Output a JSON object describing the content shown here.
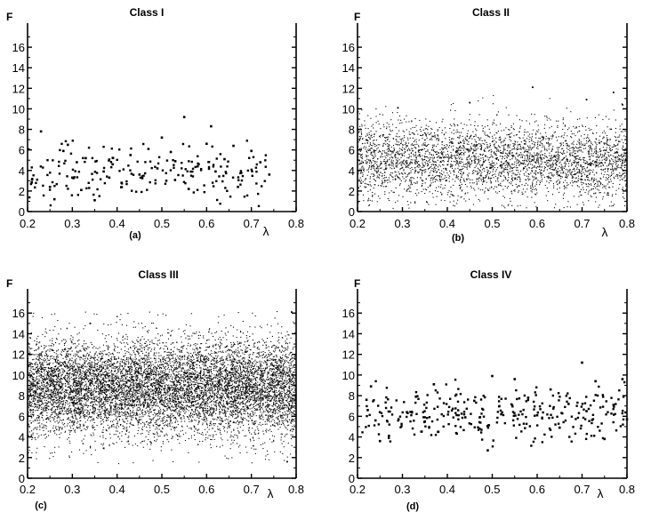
{
  "figure": {
    "panels": [
      {
        "id": "a",
        "title": "Class I",
        "subfig": "(a)",
        "ylabel": "F",
        "xlabel": "λ"
      },
      {
        "id": "b",
        "title": "Class II",
        "subfig": "(b)",
        "ylabel": "F",
        "xlabel": "λ"
      },
      {
        "id": "c",
        "title": "Class III",
        "subfig": "(c)",
        "ylabel": "F",
        "xlabel": "λ"
      },
      {
        "id": "d",
        "title": "Class IV",
        "subfig": "(d)",
        "ylabel": "F",
        "xlabel": "λ"
      }
    ]
  },
  "chart_data": [
    {
      "type": "scatter",
      "title": "Class I",
      "xlabel": "λ",
      "ylabel": "F",
      "xlim": [
        0.2,
        0.8
      ],
      "ylim": [
        0,
        18
      ],
      "xticks": [
        "0.2",
        "0.3",
        "0.4",
        "0.5",
        "0.6",
        "0.7",
        "0.8"
      ],
      "yticks": [
        "0",
        "2",
        "4",
        "6",
        "8",
        "10",
        "12",
        "14",
        "16"
      ],
      "point_count_estimate": 200,
      "point_distribution": {
        "x_range": [
          0.2,
          0.74
        ],
        "y_range": [
          0.5,
          9.2
        ],
        "y_center": 3.8
      },
      "x": [
        0.21,
        0.23,
        0.25,
        0.26,
        0.28,
        0.29,
        0.3,
        0.31,
        0.32,
        0.33,
        0.35,
        0.37,
        0.39,
        0.41,
        0.43,
        0.45,
        0.47,
        0.49,
        0.5,
        0.51,
        0.52,
        0.53,
        0.55,
        0.56,
        0.58,
        0.6,
        0.61,
        0.62,
        0.64,
        0.66,
        0.67,
        0.7,
        0.72,
        0.74
      ],
      "y": [
        3.1,
        7.8,
        2.4,
        1.2,
        5.9,
        6.5,
        3.3,
        4.8,
        2.1,
        5.2,
        1.1,
        3.9,
        4.6,
        2.8,
        5.5,
        3.6,
        6.1,
        4.2,
        7.2,
        3.0,
        5.8,
        4.9,
        9.2,
        2.2,
        4.4,
        6.6,
        8.3,
        3.9,
        5.1,
        6.4,
        2.4,
        5.9,
        4.8,
        3.6
      ]
    },
    {
      "type": "scatter",
      "title": "Class II",
      "xlabel": "λ",
      "ylabel": "F",
      "xlim": [
        0.2,
        0.8
      ],
      "ylim": [
        0,
        18
      ],
      "xticks": [
        "0.2",
        "0.3",
        "0.4",
        "0.5",
        "0.6",
        "0.7",
        "0.8"
      ],
      "yticks": [
        "0",
        "2",
        "4",
        "6",
        "8",
        "10",
        "12",
        "14",
        "16"
      ],
      "point_count_estimate": 3500,
      "point_distribution": {
        "x_range": [
          0.2,
          0.8
        ],
        "y_range": [
          0.3,
          12.2
        ],
        "y_center": 5.0
      },
      "x": [
        0.29,
        0.45,
        0.59,
        0.71,
        0.77,
        0.79
      ],
      "y": [
        10.1,
        10.6,
        12.1,
        10.9,
        11.6,
        10.4
      ]
    },
    {
      "type": "scatter",
      "title": "Class III",
      "xlabel": "λ",
      "ylabel": "F",
      "xlim": [
        0.2,
        0.8
      ],
      "ylim": [
        0,
        18
      ],
      "xticks": [
        "0.2",
        "0.3",
        "0.4",
        "0.5",
        "0.6",
        "0.7",
        "0.8"
      ],
      "yticks": [
        "0",
        "2",
        "4",
        "6",
        "8",
        "10",
        "12",
        "14",
        "16"
      ],
      "point_count_estimate": 9000,
      "point_distribution": {
        "x_range": [
          0.2,
          0.8
        ],
        "y_range": [
          1.2,
          16.2
        ],
        "y_center": 8.8
      },
      "x": [
        0.34,
        0.37,
        0.78,
        0.79
      ],
      "y": [
        15.0,
        2.9,
        1.6,
        16.1
      ]
    },
    {
      "type": "scatter",
      "title": "Class IV",
      "xlabel": "λ",
      "ylabel": "F",
      "xlim": [
        0.2,
        0.8
      ],
      "ylim": [
        0,
        18
      ],
      "xticks": [
        "0.2",
        "0.3",
        "0.4",
        "0.5",
        "0.6",
        "0.7",
        "0.8"
      ],
      "yticks": [
        "0",
        "2",
        "4",
        "6",
        "8",
        "10",
        "12",
        "14",
        "16"
      ],
      "point_count_estimate": 300,
      "point_distribution": {
        "x_range": [
          0.21,
          0.8
        ],
        "y_range": [
          2.7,
          11.3
        ],
        "y_center": 6.3
      },
      "x": [
        0.22,
        0.23,
        0.24,
        0.25,
        0.27,
        0.31,
        0.33,
        0.35,
        0.37,
        0.38,
        0.42,
        0.44,
        0.46,
        0.49,
        0.5,
        0.52,
        0.55,
        0.58,
        0.6,
        0.63,
        0.65,
        0.67,
        0.7,
        0.71,
        0.73,
        0.75,
        0.77,
        0.79,
        0.8
      ],
      "y": [
        7.6,
        8.9,
        5.6,
        3.6,
        4.1,
        6.4,
        7.9,
        5.5,
        9.1,
        4.5,
        8.1,
        5.9,
        7.5,
        2.7,
        9.9,
        6.2,
        9.6,
        7.8,
        6.1,
        8.6,
        4.9,
        7.2,
        11.2,
        6.5,
        9.4,
        3.8,
        7.1,
        9.6,
        5.7
      ]
    }
  ]
}
